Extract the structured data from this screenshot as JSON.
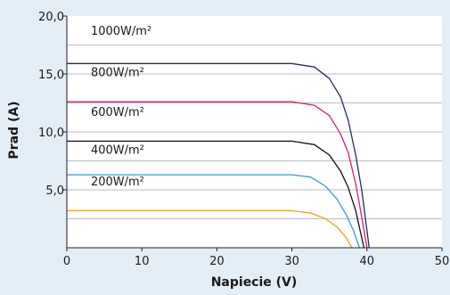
{
  "chart_data": {
    "type": "line",
    "title": "",
    "xlabel": "Napiecie (V)",
    "ylabel": "Prad (A)",
    "xlim": [
      0,
      50
    ],
    "ylim": [
      0,
      20
    ],
    "x_ticks": [
      "0",
      "10",
      "20",
      "30",
      "40",
      "50"
    ],
    "y_ticks": [
      "5,0",
      "10,0",
      "15,0",
      "20,0"
    ],
    "grid": "horizontal",
    "series": [
      {
        "name": "1000W/m²",
        "color": "#2b2a66",
        "isc": 15.9,
        "voc": 40.3,
        "knee_v": 30.5,
        "points": [
          [
            0,
            15.9
          ],
          [
            30,
            15.9
          ],
          [
            33,
            15.6
          ],
          [
            35,
            14.6
          ],
          [
            36.5,
            13.0
          ],
          [
            37.5,
            11.0
          ],
          [
            38.5,
            8.0
          ],
          [
            39.3,
            5.0
          ],
          [
            40.3,
            0
          ]
        ]
      },
      {
        "name": "800W/m²",
        "color": "#d21f73",
        "isc": 12.6,
        "voc": 40.0,
        "knee_v": 30.5,
        "points": [
          [
            0,
            12.6
          ],
          [
            30,
            12.6
          ],
          [
            33,
            12.3
          ],
          [
            35,
            11.4
          ],
          [
            36.5,
            9.8
          ],
          [
            37.5,
            8.2
          ],
          [
            38.5,
            5.5
          ],
          [
            39.2,
            3.0
          ],
          [
            40.0,
            0
          ]
        ]
      },
      {
        "name": "600W/m²",
        "color": "#111111",
        "isc": 9.2,
        "voc": 39.6,
        "knee_v": 30.5,
        "points": [
          [
            0,
            9.2
          ],
          [
            30,
            9.2
          ],
          [
            33,
            8.9
          ],
          [
            35,
            8.0
          ],
          [
            36.5,
            6.6
          ],
          [
            37.5,
            5.2
          ],
          [
            38.5,
            3.2
          ],
          [
            39.6,
            0
          ]
        ]
      },
      {
        "name": "400W/m²",
        "color": "#3f9ad4",
        "isc": 6.3,
        "voc": 39.0,
        "knee_v": 30.5,
        "points": [
          [
            0,
            6.3
          ],
          [
            30,
            6.3
          ],
          [
            32.5,
            6.1
          ],
          [
            34.5,
            5.3
          ],
          [
            36,
            4.2
          ],
          [
            37.2,
            2.9
          ],
          [
            38.2,
            1.5
          ],
          [
            39.0,
            0
          ]
        ]
      },
      {
        "name": "200W/m²",
        "color": "#f0a020",
        "isc": 3.2,
        "voc": 38.0,
        "knee_v": 30.5,
        "points": [
          [
            0,
            3.2
          ],
          [
            30,
            3.2
          ],
          [
            32.5,
            3.0
          ],
          [
            34.5,
            2.5
          ],
          [
            36,
            1.8
          ],
          [
            37.2,
            0.9
          ],
          [
            38.0,
            0
          ]
        ]
      }
    ]
  }
}
